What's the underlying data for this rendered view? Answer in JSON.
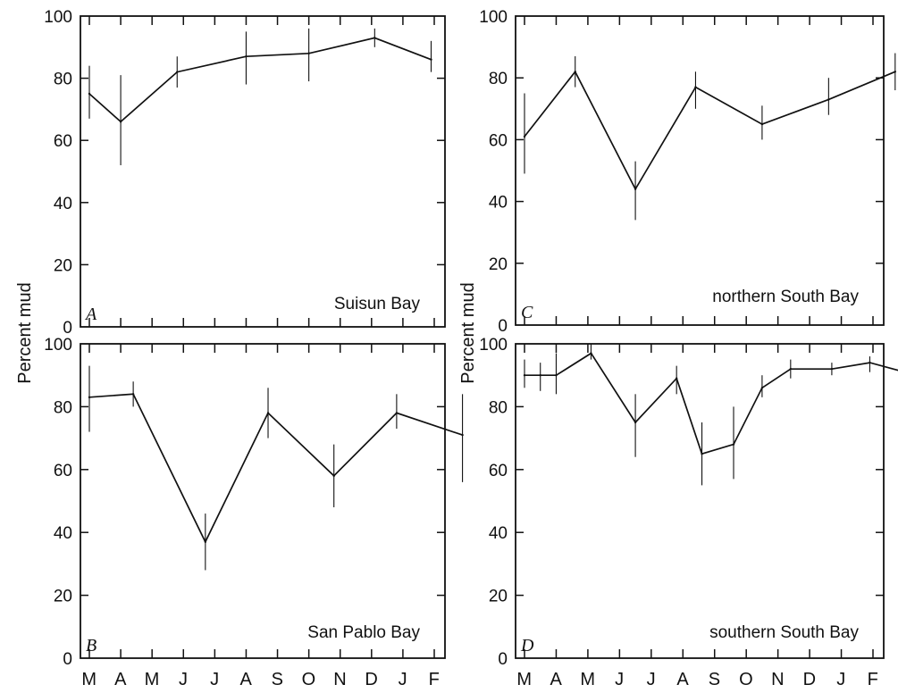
{
  "chart_data": [
    {
      "type": "line",
      "panel": "A",
      "annotation": "Suisun Bay",
      "ylabel": "Percent mud",
      "ylim": [
        0,
        100
      ],
      "yticks": [
        0,
        20,
        40,
        60,
        80,
        100
      ],
      "month_labels": [
        "M",
        "A",
        "M",
        "J",
        "J",
        "A",
        "S",
        "O",
        "N",
        "D",
        "J",
        "F"
      ],
      "points": [
        {
          "x": 0,
          "y": 75,
          "err": [
            67,
            84
          ]
        },
        {
          "x": 1,
          "y": 66,
          "err": [
            52,
            81
          ]
        },
        {
          "x": 2.8,
          "y": 82,
          "err": [
            77,
            87
          ]
        },
        {
          "x": 5,
          "y": 87,
          "err": [
            78,
            95
          ]
        },
        {
          "x": 7,
          "y": 88,
          "err": [
            79,
            96
          ]
        },
        {
          "x": 9.1,
          "y": 93,
          "err": [
            90,
            96
          ]
        },
        {
          "x": 10.9,
          "y": 86,
          "err": [
            82,
            92
          ]
        }
      ]
    },
    {
      "type": "line",
      "panel": "B",
      "annotation": "San Pablo Bay",
      "ylabel": "Percent mud",
      "ylim": [
        0,
        100
      ],
      "yticks": [
        0,
        20,
        40,
        60,
        80,
        100
      ],
      "month_labels": [
        "M",
        "A",
        "M",
        "J",
        "J",
        "A",
        "S",
        "O",
        "N",
        "D",
        "J",
        "F"
      ],
      "points": [
        {
          "x": 0,
          "y": 83,
          "err": [
            72,
            93
          ]
        },
        {
          "x": 1.4,
          "y": 84,
          "err": [
            80,
            88
          ]
        },
        {
          "x": 3.7,
          "y": 37,
          "err": [
            28,
            46
          ]
        },
        {
          "x": 5.7,
          "y": 78,
          "err": [
            70,
            86
          ]
        },
        {
          "x": 7.8,
          "y": 58,
          "err": [
            48,
            68
          ]
        },
        {
          "x": 9.8,
          "y": 78,
          "err": [
            73,
            84
          ]
        },
        {
          "x": 11.9,
          "y": 71,
          "err": [
            56,
            84
          ]
        }
      ]
    },
    {
      "type": "line",
      "panel": "C",
      "annotation": "northern South Bay",
      "ylabel": "Percent mud",
      "ylim": [
        0,
        100
      ],
      "yticks": [
        0,
        20,
        40,
        60,
        80,
        100
      ],
      "month_labels": [
        "M",
        "A",
        "M",
        "J",
        "J",
        "A",
        "S",
        "O",
        "N",
        "D",
        "J",
        "F"
      ],
      "points": [
        {
          "x": 0,
          "y": 61,
          "err": [
            49,
            75
          ]
        },
        {
          "x": 1.6,
          "y": 82,
          "err": [
            77,
            87
          ]
        },
        {
          "x": 3.5,
          "y": 44,
          "err": [
            34,
            53
          ]
        },
        {
          "x": 5.4,
          "y": 77,
          "err": [
            70,
            82
          ]
        },
        {
          "x": 7.5,
          "y": 65,
          "err": [
            60,
            71
          ]
        },
        {
          "x": 9.6,
          "y": 73,
          "err": [
            68,
            80
          ]
        },
        {
          "x": 11.7,
          "y": 82,
          "err": [
            76,
            88
          ]
        }
      ]
    },
    {
      "type": "line",
      "panel": "D",
      "annotation": "southern South Bay",
      "ylabel": "Percent mud",
      "ylim": [
        0,
        100
      ],
      "yticks": [
        0,
        20,
        40,
        60,
        80,
        100
      ],
      "month_labels": [
        "M",
        "A",
        "M",
        "J",
        "J",
        "A",
        "S",
        "O",
        "N",
        "D",
        "J",
        "F"
      ],
      "points": [
        {
          "x": 0,
          "y": 90,
          "err": [
            86,
            95
          ]
        },
        {
          "x": 0.5,
          "y": 90,
          "err": [
            85,
            94
          ]
        },
        {
          "x": 1,
          "y": 90,
          "err": [
            84,
            97
          ]
        },
        {
          "x": 2.1,
          "y": 97,
          "err": [
            95,
            100
          ]
        },
        {
          "x": 3.5,
          "y": 75,
          "err": [
            64,
            84
          ]
        },
        {
          "x": 4.8,
          "y": 89,
          "err": [
            84,
            93
          ]
        },
        {
          "x": 5.6,
          "y": 65,
          "err": [
            55,
            75
          ]
        },
        {
          "x": 6.6,
          "y": 68,
          "err": [
            57,
            80
          ]
        },
        {
          "x": 7.5,
          "y": 86,
          "err": [
            83,
            90
          ]
        },
        {
          "x": 8.4,
          "y": 92,
          "err": [
            89,
            95
          ]
        },
        {
          "x": 9.7,
          "y": 92,
          "err": [
            90,
            94
          ]
        },
        {
          "x": 10.9,
          "y": 94,
          "err": [
            91,
            96
          ]
        },
        {
          "x": 12,
          "y": 91,
          "err": [
            87,
            94
          ]
        }
      ]
    }
  ]
}
